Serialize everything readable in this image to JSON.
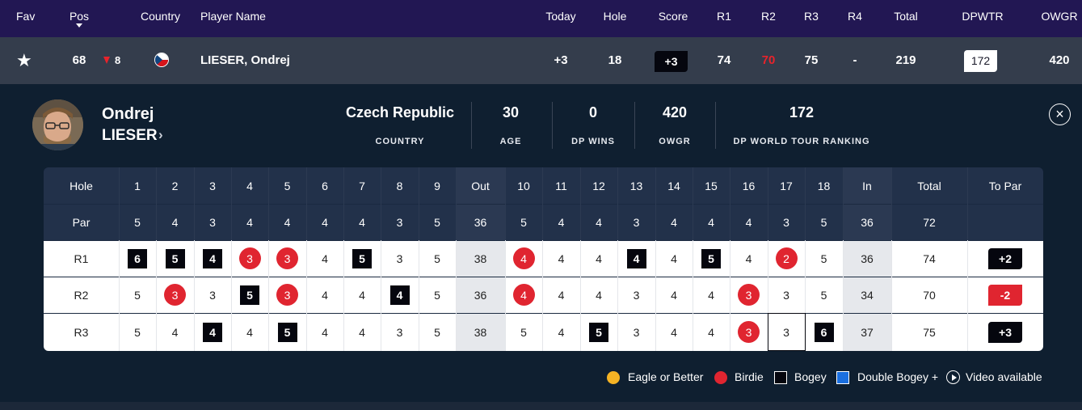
{
  "header": {
    "fav": "Fav",
    "pos": "Pos",
    "country": "Country",
    "player_name": "Player Name",
    "today": "Today",
    "hole": "Hole",
    "score": "Score",
    "r1": "R1",
    "r2": "R2",
    "r3": "R3",
    "r4": "R4",
    "total": "Total",
    "dpwtr": "DPWTR",
    "owgr": "OWGR"
  },
  "player_row": {
    "position": "68",
    "movement": "8",
    "movement_direction": "down",
    "country_flag": "czech-republic-flag",
    "name": "LIESER, Ondrej",
    "today": "+3",
    "hole": "18",
    "score": "+3",
    "r1": "74",
    "r2": "70",
    "r3": "75",
    "r4": "-",
    "total": "219",
    "dpwtr": "172",
    "owgr": "420"
  },
  "player_card": {
    "first_name": "Ondrej",
    "last_name": "LIESER",
    "stats": [
      {
        "value": "Czech Republic",
        "label": "COUNTRY"
      },
      {
        "value": "30",
        "label": "AGE"
      },
      {
        "value": "0",
        "label": "DP WINS"
      },
      {
        "value": "420",
        "label": "OWGR"
      },
      {
        "value": "172",
        "label": "DP WORLD TOUR RANKING"
      }
    ]
  },
  "scorecard": {
    "hole_label": "Hole",
    "par_label": "Par",
    "holes": [
      "1",
      "2",
      "3",
      "4",
      "5",
      "6",
      "7",
      "8",
      "9",
      "Out",
      "10",
      "11",
      "12",
      "13",
      "14",
      "15",
      "16",
      "17",
      "18",
      "In",
      "Total",
      "To Par"
    ],
    "par": [
      "5",
      "4",
      "3",
      "4",
      "4",
      "4",
      "4",
      "3",
      "5",
      "36",
      "5",
      "4",
      "4",
      "3",
      "4",
      "4",
      "4",
      "3",
      "5",
      "36",
      "72",
      ""
    ],
    "rounds": [
      {
        "label": "R1",
        "scores": [
          "6",
          "5",
          "4",
          "3",
          "3",
          "4",
          "5",
          "3",
          "5",
          "38",
          "4",
          "4",
          "4",
          "4",
          "4",
          "5",
          "4",
          "2",
          "5",
          "36",
          "74",
          "+2"
        ],
        "types": [
          "bogey",
          "bogey",
          "bogey",
          "birdie",
          "birdie",
          "par",
          "bogey",
          "par",
          "par",
          "out",
          "birdie",
          "par",
          "par",
          "bogey",
          "par",
          "bogey",
          "par",
          "birdie",
          "par",
          "in",
          "total",
          "over"
        ]
      },
      {
        "label": "R2",
        "scores": [
          "5",
          "3",
          "3",
          "5",
          "3",
          "4",
          "4",
          "4",
          "5",
          "36",
          "4",
          "4",
          "4",
          "3",
          "4",
          "4",
          "3",
          "3",
          "5",
          "34",
          "70",
          "-2"
        ],
        "types": [
          "par",
          "birdie",
          "par",
          "bogey",
          "birdie",
          "par",
          "par",
          "bogey",
          "par",
          "out",
          "birdie",
          "par",
          "par",
          "par",
          "par",
          "par",
          "birdie",
          "par",
          "par",
          "in",
          "total",
          "under"
        ]
      },
      {
        "label": "R3",
        "scores": [
          "5",
          "4",
          "4",
          "4",
          "5",
          "4",
          "4",
          "3",
          "5",
          "38",
          "5",
          "4",
          "5",
          "3",
          "4",
          "4",
          "3",
          "3",
          "6",
          "37",
          "75",
          "+3"
        ],
        "types": [
          "par",
          "par",
          "bogey",
          "par",
          "bogey",
          "par",
          "par",
          "par",
          "par",
          "out",
          "par",
          "par",
          "bogey",
          "par",
          "par",
          "par",
          "birdie",
          "par",
          "bogey",
          "in",
          "total",
          "over"
        ]
      }
    ]
  },
  "legend": {
    "eagle": "Eagle or Better",
    "birdie": "Birdie",
    "bogey": "Bogey",
    "double_bogey": "Double Bogey +",
    "video": "Video available"
  },
  "colors": {
    "header_bg": "#221753",
    "row_bg": "#343d4c",
    "page_bg": "#0f1f30",
    "birdie": "#e02530",
    "eagle": "#f5b324",
    "double_bogey": "#1a6fe0",
    "bogey": "#05060e",
    "r2_highlight": "#e8232b"
  }
}
